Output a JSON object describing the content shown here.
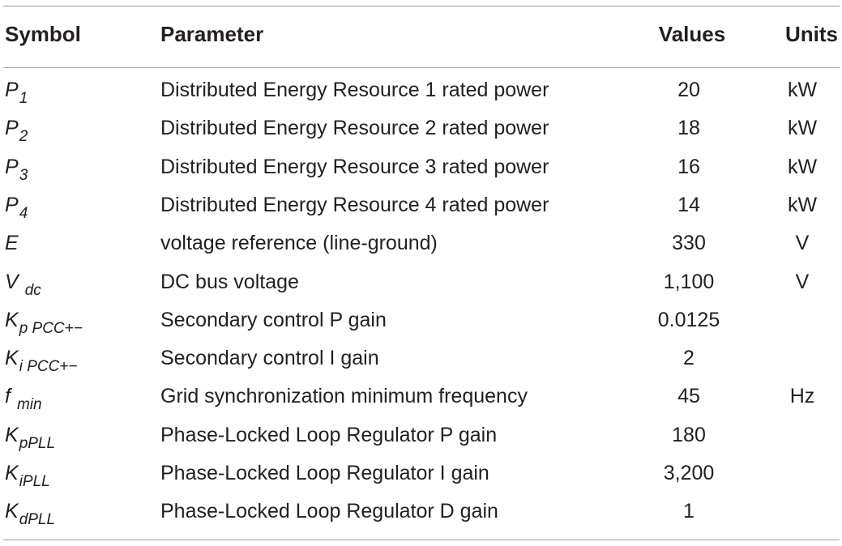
{
  "table": {
    "headers": {
      "symbol": "Symbol",
      "parameter": "Parameter",
      "values": "Values",
      "units": "Units"
    },
    "rows": [
      {
        "symbol_main": "P",
        "symbol_sub": "1",
        "parameter": "Distributed Energy Resource 1 rated power",
        "value": "20",
        "unit": "kW"
      },
      {
        "symbol_main": "P",
        "symbol_sub": "2",
        "parameter": "Distributed Energy Resource 2 rated power",
        "value": "18",
        "unit": "kW"
      },
      {
        "symbol_main": "P",
        "symbol_sub": "3",
        "parameter": "Distributed Energy Resource 3 rated power",
        "value": "16",
        "unit": "kW"
      },
      {
        "symbol_main": "P",
        "symbol_sub": "4",
        "parameter": "Distributed Energy Resource 4 rated power",
        "value": "14",
        "unit": "kW"
      },
      {
        "symbol_main": "E",
        "symbol_sub": "",
        "parameter": "voltage reference (line-ground)",
        "value": "330",
        "unit": "V"
      },
      {
        "symbol_main": "V",
        "symbol_sub": "dc",
        "parameter": "DC bus voltage",
        "value": "1,100",
        "unit": "V"
      },
      {
        "symbol_main": "K",
        "symbol_sub": "p PCC+−",
        "parameter": "Secondary control P gain",
        "value": "0.0125",
        "unit": ""
      },
      {
        "symbol_main": "K",
        "symbol_sub": "i PCC+−",
        "parameter": "Secondary control I gain",
        "value": "2",
        "unit": ""
      },
      {
        "symbol_main": "f",
        "symbol_sub": "min",
        "parameter": "Grid synchronization minimum frequency",
        "value": "45",
        "unit": "Hz"
      },
      {
        "symbol_main": "K",
        "symbol_sub": "pPLL",
        "parameter": "Phase-Locked Loop Regulator P gain",
        "value": "180",
        "unit": ""
      },
      {
        "symbol_main": "K",
        "symbol_sub": "iPLL",
        "parameter": "Phase-Locked Loop Regulator I gain",
        "value": "3,200",
        "unit": ""
      },
      {
        "symbol_main": "K",
        "symbol_sub": "dPLL",
        "parameter": "Phase-Locked Loop Regulator D gain",
        "value": "1",
        "unit": ""
      }
    ]
  }
}
